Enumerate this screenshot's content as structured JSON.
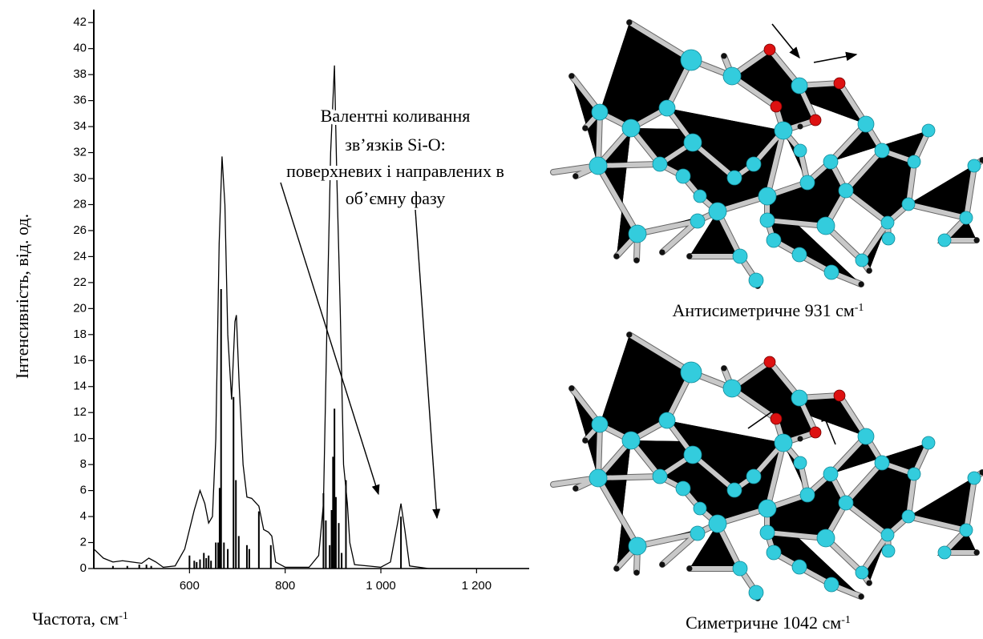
{
  "chart_data": {
    "type": "line",
    "y_label": "Інтенсивність, від. од.",
    "x_label": "Частота, см",
    "x_label_sup": "-1",
    "annotation": [
      "Валентні коливання",
      "зв’язків Si-O:",
      "поверхневих і направлених в",
      "об’ємну фазу"
    ],
    "xlim": [
      400,
      1310
    ],
    "ylim": [
      0,
      43
    ],
    "xticks": [
      600,
      800,
      {
        "value": 1000,
        "label": "1 000"
      },
      {
        "value": 1200,
        "label": "1 200"
      }
    ],
    "yticks": [
      0,
      2,
      4,
      6,
      8,
      10,
      12,
      14,
      16,
      18,
      20,
      22,
      24,
      26,
      28,
      30,
      32,
      34,
      36,
      38,
      40,
      42
    ],
    "series": [
      {
        "type": "line",
        "color": "#000000",
        "x": [
          400,
          420,
          440,
          460,
          480,
          500,
          515,
          530,
          545,
          570,
          590,
          600,
          610,
          622,
          632,
          640,
          648,
          655,
          662,
          668,
          674,
          680,
          688,
          695,
          698,
          704,
          712,
          720,
          730,
          745,
          755,
          765,
          772,
          780,
          800,
          850,
          870,
          880,
          888,
          895,
          903,
          908,
          915,
          922,
          930,
          935,
          945,
          1000,
          1020,
          1035,
          1042,
          1050,
          1060,
          1100,
          1310
        ],
        "values": [
          1.5,
          0.8,
          0.5,
          0.6,
          0.5,
          0.4,
          0.8,
          0.5,
          0.1,
          0.2,
          1.5,
          3,
          4.5,
          6,
          5,
          3.5,
          4,
          10,
          25,
          31.7,
          28,
          18,
          13,
          19,
          19.5,
          14,
          8,
          5.5,
          5.4,
          4.8,
          3,
          2.8,
          2.5,
          0.5,
          0.1,
          0.1,
          1,
          5,
          20,
          32,
          38.7,
          30,
          20,
          8,
          5,
          2,
          0.3,
          0.1,
          0.5,
          3.5,
          5,
          3,
          0.2,
          0,
          0
        ]
      },
      {
        "type": "stick",
        "color": "#000000",
        "x": [
          440,
          470,
          495,
          510,
          520,
          600,
          610,
          615,
          622,
          630,
          635,
          640,
          645,
          655,
          660,
          663,
          666,
          672,
          680,
          692,
          697,
          703,
          720,
          725,
          745,
          770,
          880,
          885,
          893,
          897,
          900,
          903,
          906,
          912,
          918,
          927,
          1042
        ],
        "values": [
          0.2,
          0.2,
          0.3,
          0.3,
          0.2,
          1,
          0.6,
          0.5,
          0.7,
          1.2,
          0.8,
          1,
          0.6,
          2,
          2,
          6.2,
          21.5,
          2,
          1.5,
          13.2,
          6.8,
          2.5,
          1.8,
          1.5,
          4.4,
          1.8,
          5.8,
          3.7,
          1.8,
          4.5,
          8.6,
          12.3,
          5.5,
          3.5,
          1.2,
          6.8,
          4
        ]
      }
    ]
  },
  "captions": [
    {
      "text": "Антисиметричне 931 см",
      "sup": "-1"
    },
    {
      "text": "Симетричне 1042 см",
      "sup": "-1"
    }
  ]
}
